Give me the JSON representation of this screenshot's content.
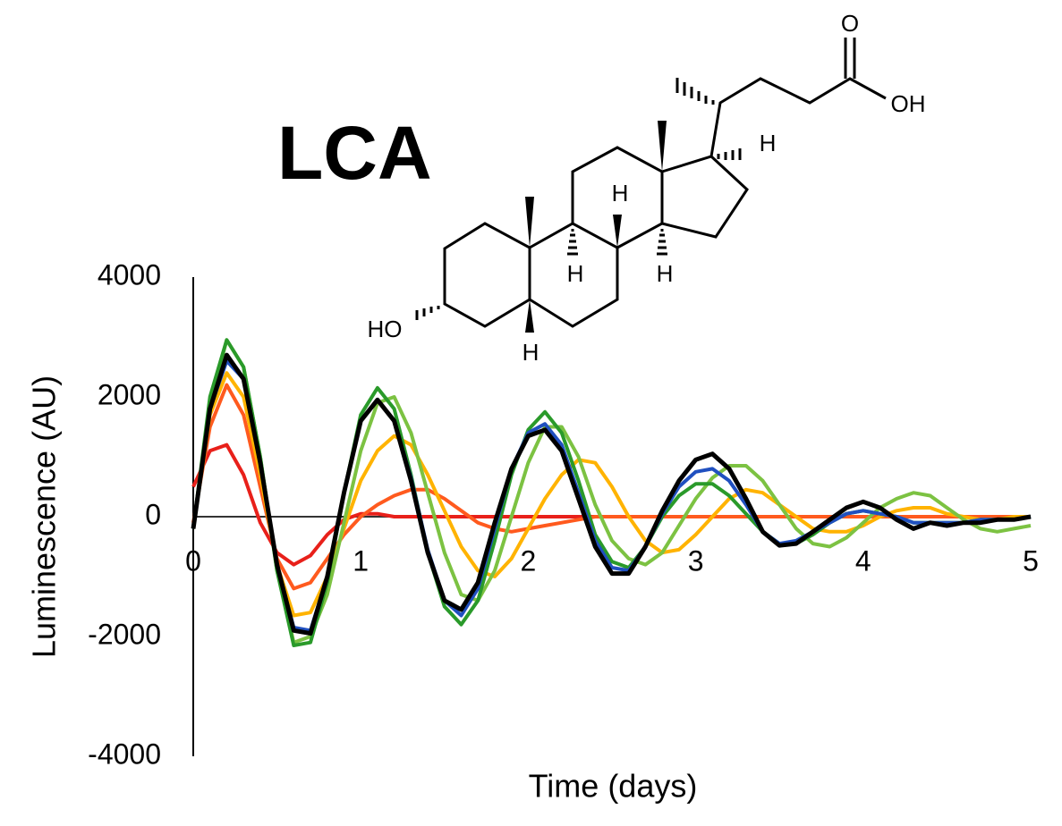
{
  "chart_data": {
    "type": "line",
    "title": "LCA",
    "x_label": "Time (days)",
    "y_label": "Luminescence (AU)",
    "xlim": [
      0,
      5
    ],
    "xticks": [
      0,
      1,
      2,
      3,
      4,
      5
    ],
    "ylim": [
      -4000,
      4000
    ],
    "yticks": [
      -4000,
      -2000,
      0,
      2000,
      4000
    ],
    "grid": false,
    "x": [
      0,
      0.1,
      0.2,
      0.3,
      0.4,
      0.5,
      0.6,
      0.7,
      0.8,
      0.9,
      1,
      1.1,
      1.2,
      1.3,
      1.4,
      1.5,
      1.6,
      1.7,
      1.8,
      1.9,
      2,
      2.1,
      2.2,
      2.3,
      2.4,
      2.5,
      2.6,
      2.7,
      2.8,
      2.9,
      3,
      3.1,
      3.2,
      3.3,
      3.4,
      3.5,
      3.6,
      3.7,
      3.8,
      3.9,
      4,
      4.1,
      4.2,
      4.3,
      4.4,
      4.5,
      4.6,
      4.7,
      4.8,
      4.9,
      5
    ],
    "series": [
      {
        "color": "#e8201a",
        "values": [
          500,
          1100,
          1200,
          700,
          -100,
          -600,
          -800,
          -650,
          -300,
          -50,
          50,
          50,
          0,
          0,
          0,
          0,
          0,
          0,
          0,
          0,
          0,
          0,
          0,
          0,
          0,
          0,
          0,
          0,
          0,
          0,
          0,
          0,
          0,
          0,
          0,
          0,
          0,
          0,
          0,
          0,
          0,
          0,
          0,
          0,
          0,
          0,
          0,
          0,
          0,
          0,
          0
        ]
      },
      {
        "color": "#ff5a1e",
        "values": [
          -100,
          1500,
          2200,
          1700,
          500,
          -700,
          -1200,
          -1100,
          -700,
          -300,
          0,
          200,
          350,
          450,
          450,
          300,
          100,
          -100,
          -200,
          -250,
          -200,
          -150,
          -100,
          -50,
          0,
          0,
          0,
          0,
          0,
          0,
          0,
          0,
          0,
          0,
          0,
          0,
          0,
          0,
          0,
          0,
          0,
          0,
          0,
          0,
          0,
          0,
          0,
          0,
          0,
          0,
          0
        ]
      },
      {
        "color": "#ffb300",
        "values": [
          -200,
          1700,
          2400,
          2000,
          700,
          -800,
          -1650,
          -1600,
          -1000,
          -200,
          600,
          1100,
          1350,
          1200,
          700,
          100,
          -500,
          -900,
          -1000,
          -700,
          -200,
          300,
          700,
          950,
          900,
          500,
          0,
          -400,
          -600,
          -550,
          -300,
          0,
          300,
          450,
          400,
          200,
          0,
          -200,
          -250,
          -250,
          -150,
          0,
          100,
          150,
          150,
          50,
          0,
          -50,
          -50,
          0,
          0
        ]
      },
      {
        "color": "#7cc242",
        "values": [
          -200,
          1900,
          2950,
          2500,
          1000,
          -900,
          -2100,
          -2000,
          -1300,
          -100,
          1100,
          1900,
          2000,
          1400,
          400,
          -600,
          -1300,
          -1400,
          -900,
          0,
          900,
          1500,
          1500,
          1000,
          200,
          -400,
          -700,
          -800,
          -600,
          -150,
          300,
          650,
          850,
          850,
          600,
          200,
          -200,
          -450,
          -500,
          -350,
          -100,
          150,
          300,
          400,
          350,
          150,
          -50,
          -200,
          -250,
          -200,
          -150
        ]
      },
      {
        "color": "#2a9a2a",
        "values": [
          -200,
          2000,
          2950,
          2500,
          1000,
          -900,
          -2150,
          -2100,
          -1100,
          400,
          1700,
          2150,
          1800,
          700,
          -600,
          -1500,
          -1800,
          -1400,
          -400,
          700,
          1450,
          1750,
          1400,
          600,
          -300,
          -750,
          -850,
          -500,
          0,
          350,
          550,
          550,
          350,
          50,
          -250,
          -450,
          -450,
          -300,
          -100,
          50,
          100,
          50,
          0,
          -100,
          -100,
          -100,
          -100,
          -50,
          -50,
          -50,
          0
        ]
      },
      {
        "color": "#2050c0",
        "values": [
          -200,
          1800,
          2600,
          2300,
          900,
          -800,
          -1850,
          -1900,
          -1000,
          400,
          1600,
          1950,
          1600,
          650,
          -550,
          -1400,
          -1650,
          -1200,
          -200,
          800,
          1400,
          1550,
          1200,
          400,
          -400,
          -850,
          -900,
          -500,
          50,
          500,
          750,
          800,
          600,
          200,
          -250,
          -450,
          -400,
          -250,
          -100,
          50,
          100,
          50,
          0,
          -100,
          -100,
          -100,
          -100,
          -50,
          -50,
          -50,
          0
        ]
      },
      {
        "color": "#000000",
        "values": [
          -200,
          1800,
          2700,
          2300,
          900,
          -800,
          -1900,
          -1950,
          -1000,
          400,
          1600,
          1950,
          1600,
          600,
          -600,
          -1400,
          -1550,
          -1100,
          -100,
          800,
          1350,
          1450,
          1100,
          300,
          -500,
          -950,
          -950,
          -500,
          100,
          600,
          950,
          1050,
          800,
          300,
          -250,
          -480,
          -450,
          -250,
          -50,
          150,
          250,
          150,
          -50,
          -200,
          -100,
          -150,
          -100,
          -100,
          -50,
          -50,
          0
        ]
      }
    ]
  },
  "structure": {
    "labels": [
      "O",
      "OH",
      "H",
      "H",
      "H",
      "H",
      "HO",
      "H"
    ]
  }
}
